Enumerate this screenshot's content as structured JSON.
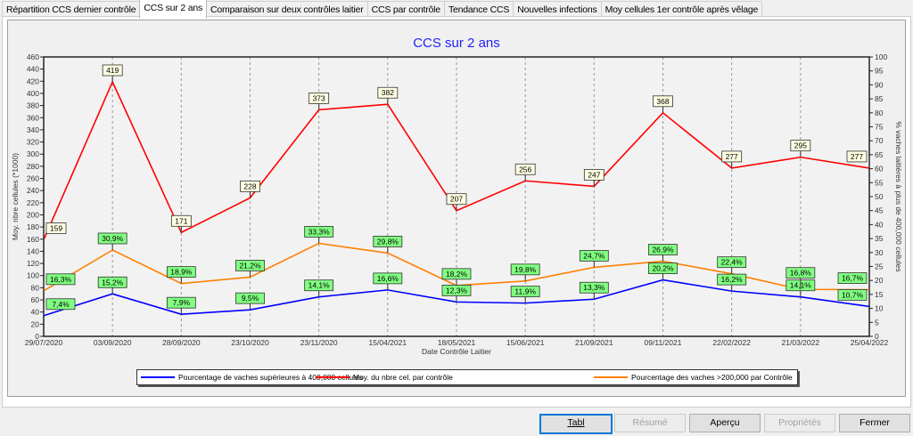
{
  "tabs": [
    "Répartition CCS dernier contrôle",
    "CCS sur 2 ans",
    "Comparaison sur deux contrôles laitier",
    "CCS par contrôle",
    "Tendance CCS",
    "Nouvelles infections",
    "Moy cellules 1er contrôle après vêlage"
  ],
  "active_tab": 1,
  "buttons": {
    "tabl": "Tabl",
    "resume": "Résumé",
    "apercu": "Aperçu",
    "proprietes": "Propriétés",
    "fermer": "Fermer"
  },
  "chart_data": {
    "type": "line",
    "title": "CCS sur 2 ans",
    "xlabel": "Date Contrôle Laitier",
    "ylabel": "Moy. nbre cellules (*1000)",
    "y2label": "% vaches laitières à plus de 400,000 cellules",
    "ylim": [
      0,
      460
    ],
    "y2lim": [
      0,
      100
    ],
    "ytick_step": 20,
    "y2tick_step": 5,
    "grid": "vertical dashed",
    "legend": "bottom",
    "categories": [
      "29/07/2020",
      "03/09/2020",
      "28/09/2020",
      "23/10/2020",
      "23/11/2020",
      "15/04/2021",
      "18/05/2021",
      "15/06/2021",
      "21/09/2021",
      "09/11/2021",
      "22/02/2022",
      "21/03/2022",
      "25/04/2022"
    ],
    "series": [
      {
        "name": "Pourcentage de vaches supérieures à 400,000 cellules",
        "axis": "right",
        "color": "#0000ff",
        "values": [
          7.4,
          15.2,
          7.9,
          9.5,
          14.1,
          16.6,
          12.3,
          11.9,
          13.3,
          20.2,
          16.2,
          14.1,
          10.7
        ],
        "labels": [
          "7,4%",
          "15,2%",
          "7,9%",
          "9,5%",
          "14,1%",
          "16,6%",
          "12,3%",
          "11,9%",
          "13,3%",
          "20,2%",
          "16,2%",
          "14,1%",
          "10,7%"
        ]
      },
      {
        "name": "Moy. du nbre cel. par contrôle",
        "axis": "left",
        "color": "#ff0000",
        "values": [
          159,
          419,
          171,
          228,
          373,
          382,
          207,
          256,
          247,
          368,
          277,
          295,
          277
        ],
        "labels": [
          "159",
          "419",
          "171",
          "228",
          "373",
          "382",
          "207",
          "256",
          "247",
          "368",
          "277",
          "295",
          "277"
        ]
      },
      {
        "name": "Pourcentage des vaches >200,000 par Contrôle",
        "axis": "right",
        "color": "#ff8000",
        "values": [
          16.3,
          30.9,
          18.9,
          21.2,
          33.3,
          29.8,
          18.2,
          19.8,
          24.7,
          26.9,
          22.4,
          16.8,
          16.7
        ],
        "labels": [
          "16,3%",
          "30,9%",
          "18,9%",
          "21,2%",
          "33,3%",
          "29,8%",
          "18,2%",
          "19,8%",
          "24,7%",
          "26,9%",
          "22,4%",
          "16,8%",
          "16,7%"
        ]
      }
    ]
  }
}
